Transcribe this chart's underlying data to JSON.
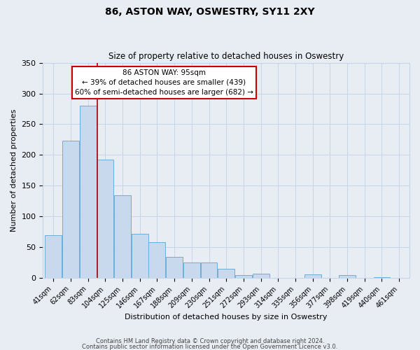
{
  "title": "86, ASTON WAY, OSWESTRY, SY11 2XY",
  "subtitle": "Size of property relative to detached houses in Oswestry",
  "xlabel": "Distribution of detached houses by size in Oswestry",
  "ylabel": "Number of detached properties",
  "categories": [
    "41sqm",
    "62sqm",
    "83sqm",
    "104sqm",
    "125sqm",
    "146sqm",
    "167sqm",
    "188sqm",
    "209sqm",
    "230sqm",
    "251sqm",
    "272sqm",
    "293sqm",
    "314sqm",
    "335sqm",
    "356sqm",
    "377sqm",
    "398sqm",
    "419sqm",
    "440sqm",
    "461sqm"
  ],
  "values": [
    70,
    223,
    280,
    193,
    134,
    72,
    58,
    34,
    25,
    25,
    15,
    5,
    7,
    0,
    0,
    6,
    0,
    5,
    0,
    1,
    0
  ],
  "bar_color": "#c8d9ee",
  "bar_edge_color": "#6aaed6",
  "grid_color": "#c8d4e8",
  "background_color": "#e8edf4",
  "vline_color": "#aa0000",
  "annotation_title": "86 ASTON WAY: 95sqm",
  "annotation_line1": "← 39% of detached houses are smaller (439)",
  "annotation_line2": "60% of semi-detached houses are larger (682) →",
  "annotation_box_color": "#ffffff",
  "annotation_box_edge": "#cc0000",
  "ylim": [
    0,
    350
  ],
  "yticks": [
    0,
    50,
    100,
    150,
    200,
    250,
    300,
    350
  ],
  "footer1": "Contains HM Land Registry data © Crown copyright and database right 2024.",
  "footer2": "Contains public sector information licensed under the Open Government Licence v3.0."
}
